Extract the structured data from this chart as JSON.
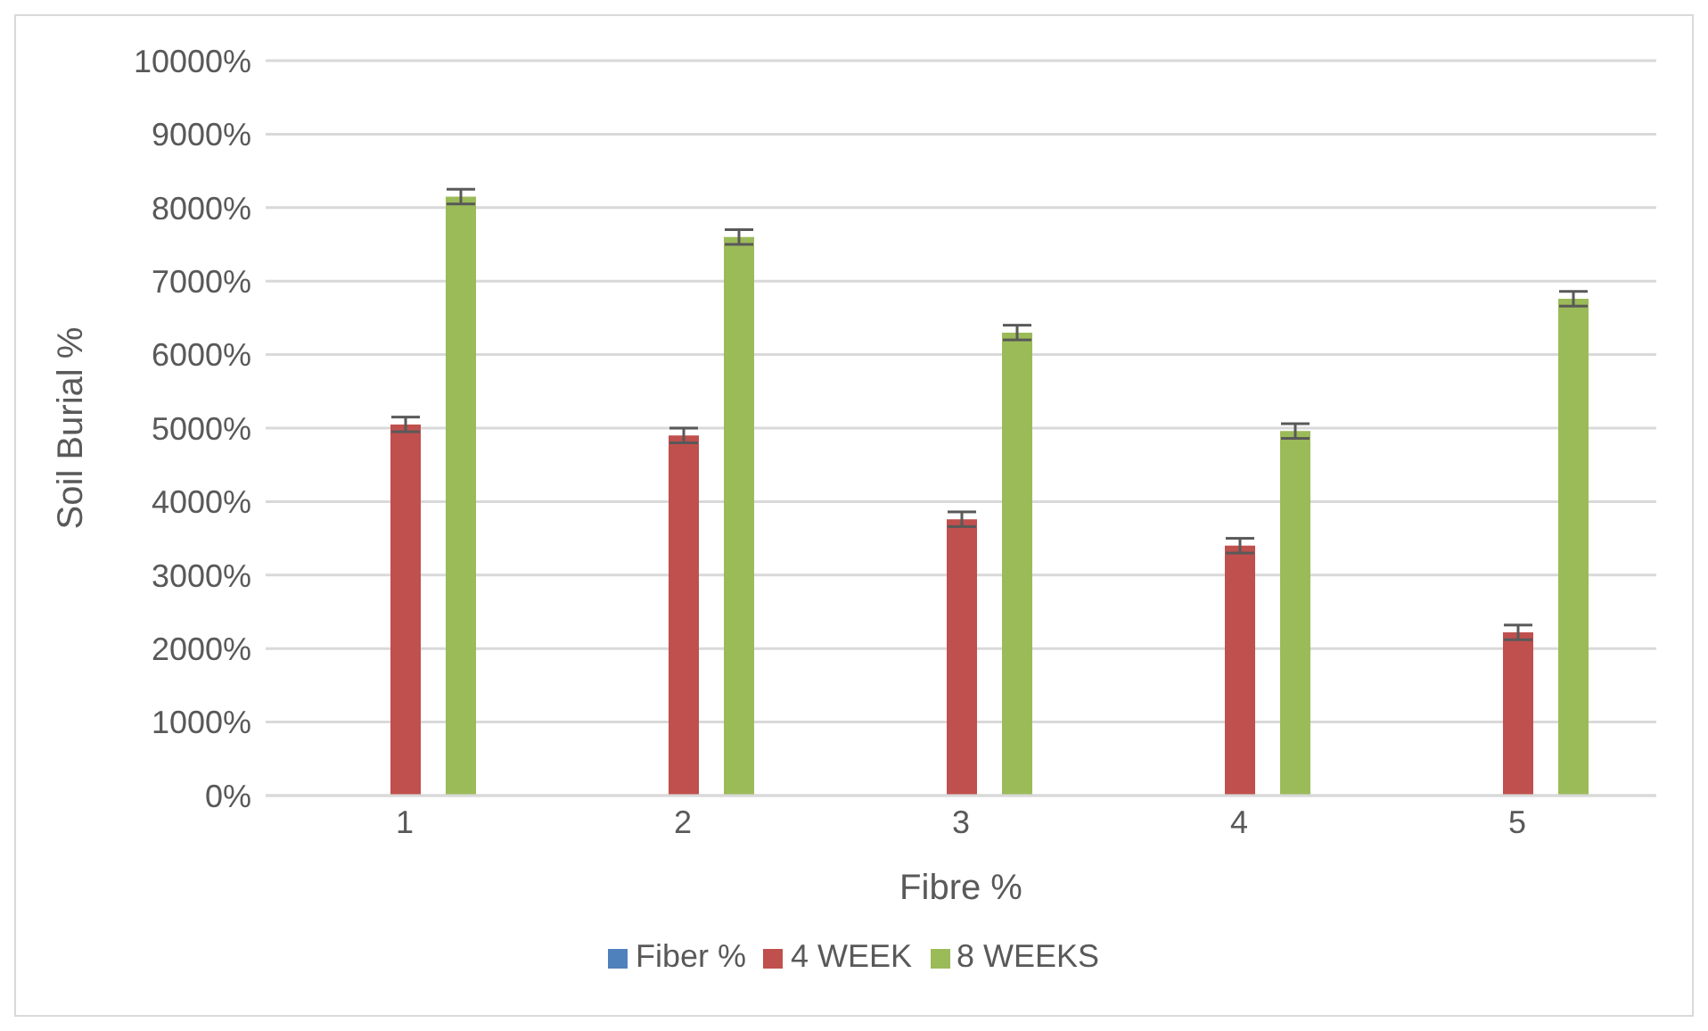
{
  "chart_data": {
    "type": "bar",
    "xlabel": "Fibre %",
    "ylabel": "Soil Burial  %",
    "categories": [
      "1",
      "2",
      "3",
      "4",
      "5"
    ],
    "series": [
      {
        "name": "Fiber %",
        "color": "#4f81bd",
        "values": [
          null,
          null,
          null,
          null,
          null
        ]
      },
      {
        "name": "4 WEEK",
        "color": "#c0504d",
        "values": [
          5050,
          4900,
          3760,
          3400,
          2220
        ],
        "errors": [
          100,
          100,
          100,
          100,
          100
        ]
      },
      {
        "name": "8 WEEKS",
        "color": "#9bbb59",
        "values": [
          8150,
          7600,
          6300,
          4960,
          6760
        ],
        "errors": [
          100,
          100,
          100,
          100,
          100
        ]
      }
    ],
    "ylim": [
      0,
      10000
    ],
    "yticks": [
      {
        "value": 0,
        "label": "0%"
      },
      {
        "value": 1000,
        "label": "1000%"
      },
      {
        "value": 2000,
        "label": "2000%"
      },
      {
        "value": 3000,
        "label": "3000%"
      },
      {
        "value": 4000,
        "label": "4000%"
      },
      {
        "value": 5000,
        "label": "5000%"
      },
      {
        "value": 6000,
        "label": "6000%"
      },
      {
        "value": 7000,
        "label": "7000%"
      },
      {
        "value": 8000,
        "label": "8000%"
      },
      {
        "value": 9000,
        "label": "9000%"
      },
      {
        "value": 10000,
        "label": "10000%"
      }
    ],
    "grid": "y",
    "legend": "bottom"
  }
}
